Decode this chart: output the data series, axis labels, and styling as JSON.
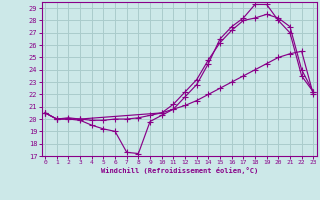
{
  "background_color": "#cce8e8",
  "grid_color": "#aacccc",
  "line_color": "#880088",
  "xlabel": "Windchill (Refroidissement éolien,°C)",
  "ylabel_ticks": [
    17,
    18,
    19,
    20,
    21,
    22,
    23,
    24,
    25,
    26,
    27,
    28,
    29
  ],
  "xlabel_ticks": [
    0,
    1,
    2,
    3,
    4,
    5,
    6,
    7,
    8,
    9,
    10,
    11,
    12,
    13,
    14,
    15,
    16,
    17,
    18,
    19,
    20,
    21,
    22,
    23
  ],
  "xlim": [
    -0.3,
    23.3
  ],
  "ylim": [
    17,
    29.5
  ],
  "line1_x": [
    0,
    1,
    2,
    3,
    4,
    5,
    6,
    7,
    8,
    9,
    10,
    11,
    12,
    13,
    14,
    15,
    16,
    17,
    18,
    19,
    20,
    21,
    22,
    23
  ],
  "line1_y": [
    20.5,
    20.0,
    20.0,
    19.9,
    19.5,
    19.2,
    19.0,
    17.3,
    17.2,
    19.8,
    20.3,
    20.8,
    21.8,
    22.8,
    24.5,
    26.5,
    27.5,
    28.2,
    29.3,
    29.3,
    28.0,
    27.0,
    23.5,
    22.2
  ],
  "line2_x": [
    0,
    1,
    2,
    3,
    4,
    5,
    6,
    7,
    8,
    9,
    10,
    11,
    12,
    13,
    14,
    15,
    16,
    17,
    18,
    19,
    20,
    21,
    22,
    23
  ],
  "line2_y": [
    20.5,
    20.0,
    20.1,
    20.0,
    19.9,
    19.9,
    20.0,
    20.0,
    20.1,
    20.3,
    20.5,
    20.8,
    21.1,
    21.5,
    22.0,
    22.5,
    23.0,
    23.5,
    24.0,
    24.5,
    25.0,
    25.3,
    25.5,
    22.0
  ],
  "line3_x": [
    0,
    1,
    2,
    3,
    10,
    11,
    12,
    13,
    14,
    15,
    16,
    17,
    18,
    19,
    20,
    21,
    22,
    23
  ],
  "line3_y": [
    20.5,
    20.0,
    20.0,
    20.0,
    20.5,
    21.2,
    22.2,
    23.2,
    24.8,
    26.2,
    27.2,
    28.0,
    28.2,
    28.5,
    28.2,
    27.5,
    24.0,
    22.2
  ]
}
